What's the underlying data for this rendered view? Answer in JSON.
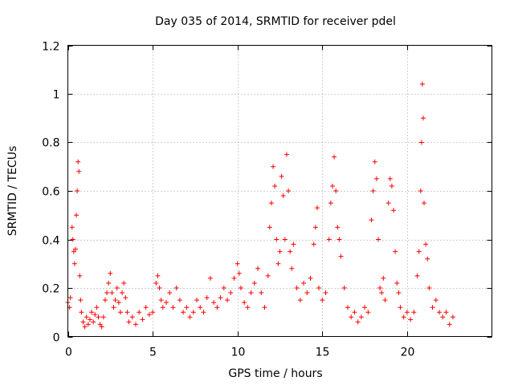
{
  "chart_data": {
    "type": "scatter",
    "title": "Day 035 of 2014, SRMTID for receiver pdel",
    "xlabel": "GPS time / hours",
    "ylabel": "SRMTID / TECUs",
    "xlim": [
      0,
      25
    ],
    "ylim": [
      0,
      1.2
    ],
    "x_ticks": [
      0,
      5,
      10,
      15,
      20
    ],
    "x_tick_labels": [
      "0",
      "5",
      "10",
      "15",
      "20"
    ],
    "y_ticks": [
      0,
      0.2,
      0.4,
      0.6,
      0.8,
      1.0,
      1.2
    ],
    "y_tick_labels": [
      "0",
      "0.2",
      "0.4",
      "0.6",
      "0.8",
      "1",
      "1.2"
    ],
    "grid": true,
    "marker": "+",
    "series_color": "#ff0000",
    "series": [
      {
        "name": "SRMTID",
        "points": [
          [
            0.0,
            0.14
          ],
          [
            0.1,
            0.12
          ],
          [
            0.15,
            0.16
          ],
          [
            0.25,
            0.45
          ],
          [
            0.3,
            0.4
          ],
          [
            0.35,
            0.35
          ],
          [
            0.4,
            0.3
          ],
          [
            0.45,
            0.36
          ],
          [
            0.5,
            0.5
          ],
          [
            0.55,
            0.6
          ],
          [
            0.6,
            0.72
          ],
          [
            0.65,
            0.68
          ],
          [
            0.7,
            0.25
          ],
          [
            0.75,
            0.15
          ],
          [
            0.8,
            0.1
          ],
          [
            0.9,
            0.06
          ],
          [
            1.0,
            0.04
          ],
          [
            1.1,
            0.08
          ],
          [
            1.2,
            0.05
          ],
          [
            1.3,
            0.07
          ],
          [
            1.4,
            0.1
          ],
          [
            1.5,
            0.06
          ],
          [
            1.6,
            0.09
          ],
          [
            1.7,
            0.12
          ],
          [
            1.8,
            0.08
          ],
          [
            1.9,
            0.05
          ],
          [
            2.0,
            0.04
          ],
          [
            2.1,
            0.08
          ],
          [
            2.2,
            0.15
          ],
          [
            2.3,
            0.18
          ],
          [
            2.4,
            0.22
          ],
          [
            2.5,
            0.26
          ],
          [
            2.6,
            0.18
          ],
          [
            2.7,
            0.12
          ],
          [
            2.8,
            0.15
          ],
          [
            2.9,
            0.2
          ],
          [
            3.0,
            0.14
          ],
          [
            3.1,
            0.1
          ],
          [
            3.2,
            0.18
          ],
          [
            3.3,
            0.22
          ],
          [
            3.4,
            0.16
          ],
          [
            3.5,
            0.1
          ],
          [
            3.6,
            0.06
          ],
          [
            3.8,
            0.08
          ],
          [
            4.0,
            0.05
          ],
          [
            4.2,
            0.1
          ],
          [
            4.4,
            0.07
          ],
          [
            4.6,
            0.12
          ],
          [
            4.8,
            0.09
          ],
          [
            5.0,
            0.1
          ],
          [
            5.2,
            0.22
          ],
          [
            5.3,
            0.25
          ],
          [
            5.4,
            0.2
          ],
          [
            5.5,
            0.15
          ],
          [
            5.6,
            0.12
          ],
          [
            5.8,
            0.14
          ],
          [
            6.0,
            0.18
          ],
          [
            6.2,
            0.12
          ],
          [
            6.4,
            0.2
          ],
          [
            6.6,
            0.15
          ],
          [
            6.8,
            0.1
          ],
          [
            7.0,
            0.12
          ],
          [
            7.2,
            0.08
          ],
          [
            7.4,
            0.1
          ],
          [
            7.6,
            0.15
          ],
          [
            7.8,
            0.12
          ],
          [
            8.0,
            0.1
          ],
          [
            8.2,
            0.16
          ],
          [
            8.4,
            0.24
          ],
          [
            8.6,
            0.14
          ],
          [
            8.8,
            0.12
          ],
          [
            9.0,
            0.16
          ],
          [
            9.2,
            0.2
          ],
          [
            9.4,
            0.15
          ],
          [
            9.6,
            0.18
          ],
          [
            9.8,
            0.24
          ],
          [
            10.0,
            0.3
          ],
          [
            10.1,
            0.26
          ],
          [
            10.2,
            0.2
          ],
          [
            10.4,
            0.14
          ],
          [
            10.6,
            0.12
          ],
          [
            10.8,
            0.18
          ],
          [
            11.0,
            0.22
          ],
          [
            11.2,
            0.28
          ],
          [
            11.4,
            0.18
          ],
          [
            11.6,
            0.12
          ],
          [
            11.8,
            0.25
          ],
          [
            11.9,
            0.45
          ],
          [
            12.0,
            0.55
          ],
          [
            12.1,
            0.7
          ],
          [
            12.2,
            0.62
          ],
          [
            12.3,
            0.4
          ],
          [
            12.4,
            0.3
          ],
          [
            12.5,
            0.35
          ],
          [
            12.6,
            0.66
          ],
          [
            12.7,
            0.58
          ],
          [
            12.8,
            0.4
          ],
          [
            12.9,
            0.75
          ],
          [
            13.0,
            0.6
          ],
          [
            13.1,
            0.35
          ],
          [
            13.2,
            0.28
          ],
          [
            13.3,
            0.38
          ],
          [
            13.5,
            0.2
          ],
          [
            13.7,
            0.15
          ],
          [
            13.9,
            0.22
          ],
          [
            14.1,
            0.18
          ],
          [
            14.3,
            0.24
          ],
          [
            14.5,
            0.38
          ],
          [
            14.6,
            0.45
          ],
          [
            14.7,
            0.53
          ],
          [
            14.8,
            0.2
          ],
          [
            15.0,
            0.15
          ],
          [
            15.2,
            0.18
          ],
          [
            15.4,
            0.4
          ],
          [
            15.5,
            0.55
          ],
          [
            15.6,
            0.62
          ],
          [
            15.7,
            0.74
          ],
          [
            15.8,
            0.6
          ],
          [
            15.9,
            0.45
          ],
          [
            16.0,
            0.4
          ],
          [
            16.1,
            0.33
          ],
          [
            16.3,
            0.2
          ],
          [
            16.5,
            0.12
          ],
          [
            16.7,
            0.08
          ],
          [
            16.9,
            0.1
          ],
          [
            17.1,
            0.06
          ],
          [
            17.3,
            0.08
          ],
          [
            17.5,
            0.12
          ],
          [
            17.7,
            0.1
          ],
          [
            17.9,
            0.48
          ],
          [
            18.0,
            0.6
          ],
          [
            18.1,
            0.72
          ],
          [
            18.2,
            0.65
          ],
          [
            18.3,
            0.4
          ],
          [
            18.4,
            0.2
          ],
          [
            18.5,
            0.18
          ],
          [
            18.6,
            0.24
          ],
          [
            18.7,
            0.15
          ],
          [
            18.9,
            0.55
          ],
          [
            19.0,
            0.65
          ],
          [
            19.1,
            0.62
          ],
          [
            19.2,
            0.52
          ],
          [
            19.3,
            0.35
          ],
          [
            19.4,
            0.22
          ],
          [
            19.5,
            0.18
          ],
          [
            19.6,
            0.12
          ],
          [
            19.8,
            0.08
          ],
          [
            20.0,
            0.1
          ],
          [
            20.2,
            0.07
          ],
          [
            20.4,
            0.1
          ],
          [
            20.6,
            0.25
          ],
          [
            20.7,
            0.35
          ],
          [
            20.8,
            0.6
          ],
          [
            20.85,
            0.8
          ],
          [
            20.9,
            1.04
          ],
          [
            20.95,
            0.9
          ],
          [
            21.0,
            0.55
          ],
          [
            21.1,
            0.38
          ],
          [
            21.2,
            0.32
          ],
          [
            21.3,
            0.2
          ],
          [
            21.5,
            0.12
          ],
          [
            21.7,
            0.15
          ],
          [
            21.9,
            0.1
          ],
          [
            22.1,
            0.08
          ],
          [
            22.3,
            0.1
          ],
          [
            22.5,
            0.05
          ],
          [
            22.7,
            0.08
          ]
        ]
      }
    ]
  }
}
